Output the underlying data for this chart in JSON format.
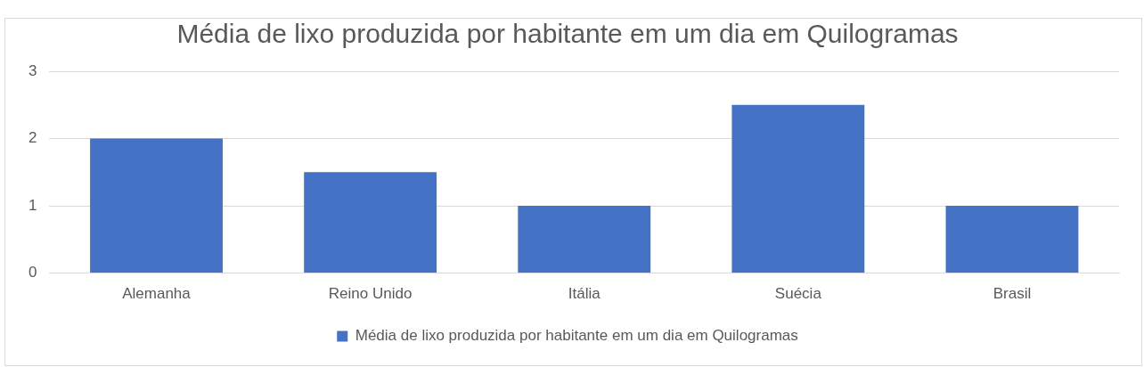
{
  "chart_data": {
    "type": "bar",
    "title": "Média de lixo produzida por habitante em um dia em Quilogramas",
    "categories": [
      "Alemanha",
      "Reino Unido",
      "Itália",
      "Suécia",
      "Brasil"
    ],
    "series": [
      {
        "name": "Média de lixo produzida por habitante em um dia em Quilogramas",
        "color": "#4472c4",
        "values": [
          2,
          1.5,
          1,
          2.5,
          1
        ]
      }
    ],
    "ylim": [
      0,
      3
    ],
    "yticks": [
      0,
      1,
      2,
      3
    ],
    "grid": "y",
    "legend": "bottom"
  }
}
